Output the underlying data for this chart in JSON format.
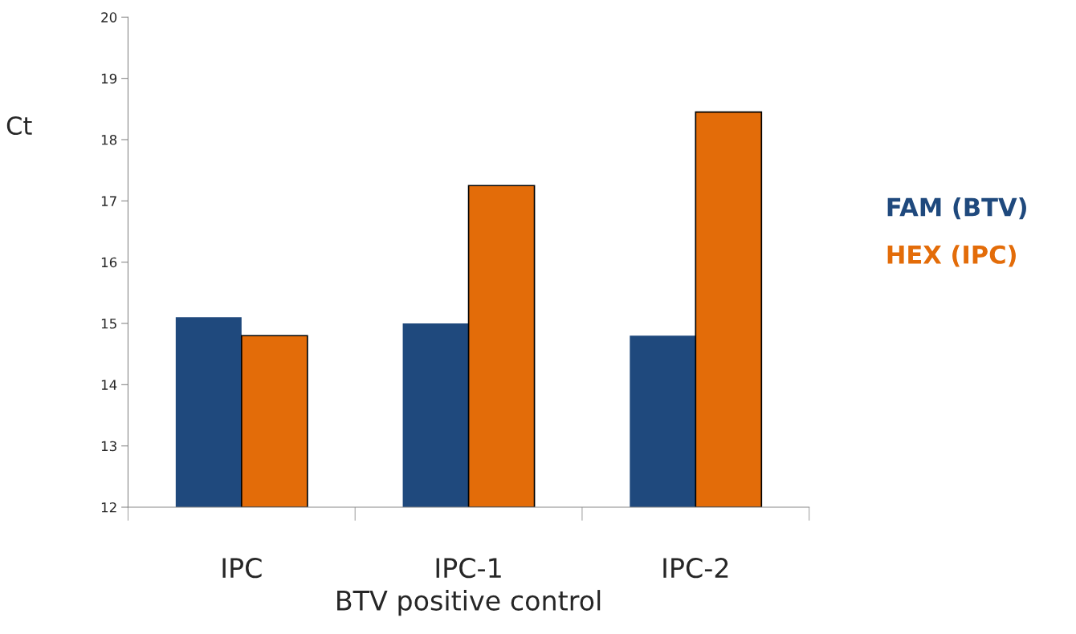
{
  "chart_data": {
    "type": "bar",
    "xlabel": "BTV positive control",
    "ylabel": "Ct",
    "categories": [
      "IPC",
      "IPC-1",
      "IPC-2"
    ],
    "series": [
      {
        "name": "FAM (BTV)",
        "color": "#1f497d",
        "values": [
          15.1,
          15.0,
          14.8
        ]
      },
      {
        "name": "HEX (IPC)",
        "color": "#e36c09",
        "values": [
          14.8,
          17.25,
          18.45
        ]
      }
    ],
    "ylim": [
      12,
      20
    ],
    "yticks": [
      12,
      13,
      14,
      15,
      16,
      17,
      18,
      19,
      20
    ],
    "grid": false,
    "legend": "right"
  }
}
